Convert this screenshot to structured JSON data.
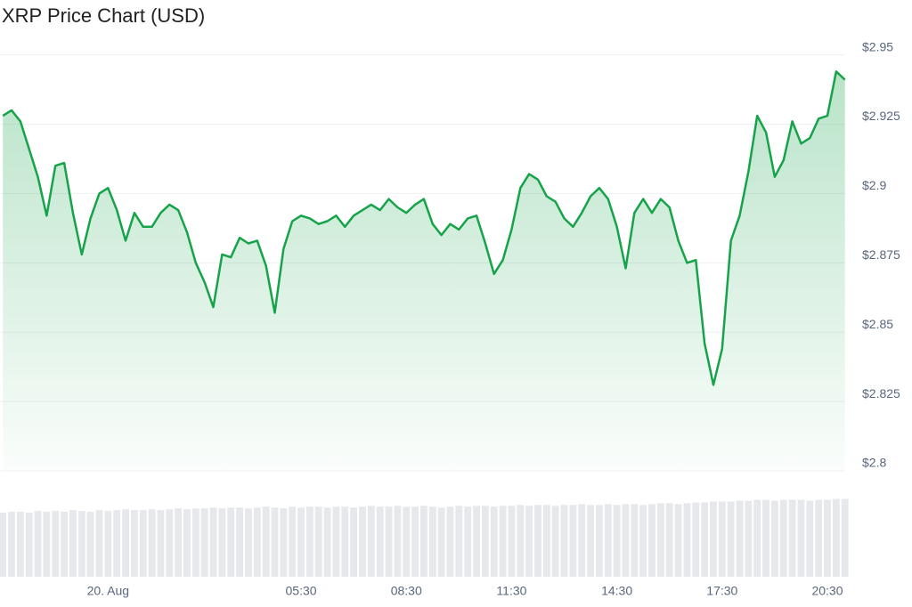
{
  "chart_data": {
    "type": "line",
    "title": "XRP Price Chart (USD)",
    "x": [
      -3,
      -2.75,
      -2.5,
      -2.25,
      -2,
      -1.75,
      -1.5,
      -1.25,
      -1,
      -0.75,
      -0.5,
      -0.25,
      0,
      0.25,
      0.5,
      0.75,
      1,
      1.25,
      1.5,
      1.75,
      2,
      2.25,
      2.5,
      2.75,
      3,
      3.25,
      3.5,
      3.75,
      4,
      4.25,
      4.5,
      4.75,
      5,
      5.25,
      5.5,
      5.75,
      6,
      6.25,
      6.5,
      6.75,
      7,
      7.25,
      7.5,
      7.75,
      8,
      8.25,
      8.5,
      8.75,
      9,
      9.25,
      9.5,
      9.75,
      10,
      10.25,
      10.5,
      10.75,
      11,
      11.25,
      11.5,
      11.75,
      12,
      12.25,
      12.5,
      12.75,
      13,
      13.25,
      13.5,
      13.75,
      14,
      14.25,
      14.5,
      14.75,
      15,
      15.25,
      15.5,
      15.75,
      16,
      16.25,
      16.5,
      16.75,
      17,
      17.25,
      17.5,
      17.75,
      18,
      18.25,
      18.5,
      18.75,
      19,
      19.25,
      19.5,
      19.75,
      20,
      20.25,
      20.5,
      20.75,
      21
    ],
    "values": [
      2.928,
      2.93,
      2.926,
      2.916,
      2.906,
      2.892,
      2.91,
      2.911,
      2.893,
      2.878,
      2.891,
      2.9,
      2.902,
      2.894,
      2.883,
      2.893,
      2.888,
      2.888,
      2.893,
      2.896,
      2.894,
      2.886,
      2.875,
      2.868,
      2.859,
      2.878,
      2.877,
      2.884,
      2.882,
      2.883,
      2.874,
      2.857,
      2.88,
      2.89,
      2.892,
      2.891,
      2.889,
      2.89,
      2.892,
      2.888,
      2.892,
      2.894,
      2.896,
      2.894,
      2.898,
      2.895,
      2.893,
      2.896,
      2.898,
      2.889,
      2.885,
      2.889,
      2.887,
      2.891,
      2.892,
      2.882,
      2.871,
      2.876,
      2.887,
      2.902,
      2.907,
      2.905,
      2.899,
      2.897,
      2.891,
      2.888,
      2.893,
      2.899,
      2.902,
      2.898,
      2.888,
      2.873,
      2.893,
      2.898,
      2.893,
      2.898,
      2.895,
      2.883,
      2.875,
      2.876,
      2.846,
      2.831,
      2.844,
      2.883,
      2.892,
      2.908,
      2.928,
      2.922,
      2.906,
      2.912,
      2.926,
      2.918,
      2.92,
      2.927,
      2.928,
      2.944,
      2.941
    ],
    "color": "#16a34a",
    "volume": {
      "color": "#e6e8ec",
      "ylim": [
        0,
        100
      ],
      "values": [
        75,
        76,
        76,
        75,
        77,
        76,
        77,
        76,
        78,
        77,
        76,
        78,
        77,
        78,
        79,
        78,
        78,
        79,
        78,
        79,
        80,
        79,
        80,
        80,
        81,
        80,
        81,
        81,
        80,
        81,
        82,
        81,
        80,
        82,
        81,
        82,
        82,
        81,
        82,
        82,
        81,
        82,
        83,
        82,
        82,
        83,
        82,
        82,
        83,
        82,
        81,
        82,
        83,
        82,
        83,
        83,
        82,
        83,
        83,
        84,
        83,
        84,
        84,
        83,
        84,
        84,
        85,
        84,
        84,
        85,
        84,
        85,
        85,
        84,
        85,
        86,
        86,
        85,
        86,
        87,
        87,
        88,
        88,
        88,
        89,
        89,
        90,
        90,
        89,
        90,
        90,
        90,
        89,
        90,
        90,
        91,
        91
      ]
    },
    "xlim": [
      -3.08,
      21
    ],
    "ylim": [
      2.8,
      2.955
    ],
    "xticks": [
      {
        "value": 0,
        "label": "20. Aug"
      },
      {
        "value": 5.5,
        "label": "05:30"
      },
      {
        "value": 8.5,
        "label": "08:30"
      },
      {
        "value": 11.5,
        "label": "11:30"
      },
      {
        "value": 14.5,
        "label": "14:30"
      },
      {
        "value": 17.5,
        "label": "17:30"
      },
      {
        "value": 20.5,
        "label": "20:30"
      }
    ],
    "yticks": [
      {
        "value": 2.8,
        "label": "$2.8"
      },
      {
        "value": 2.825,
        "label": "$2.825"
      },
      {
        "value": 2.85,
        "label": "$2.85"
      },
      {
        "value": 2.875,
        "label": "$2.875"
      },
      {
        "value": 2.9,
        "label": "$2.9"
      },
      {
        "value": 2.925,
        "label": "$2.925"
      },
      {
        "value": 2.95,
        "label": "$2.95"
      }
    ],
    "grid": true
  }
}
